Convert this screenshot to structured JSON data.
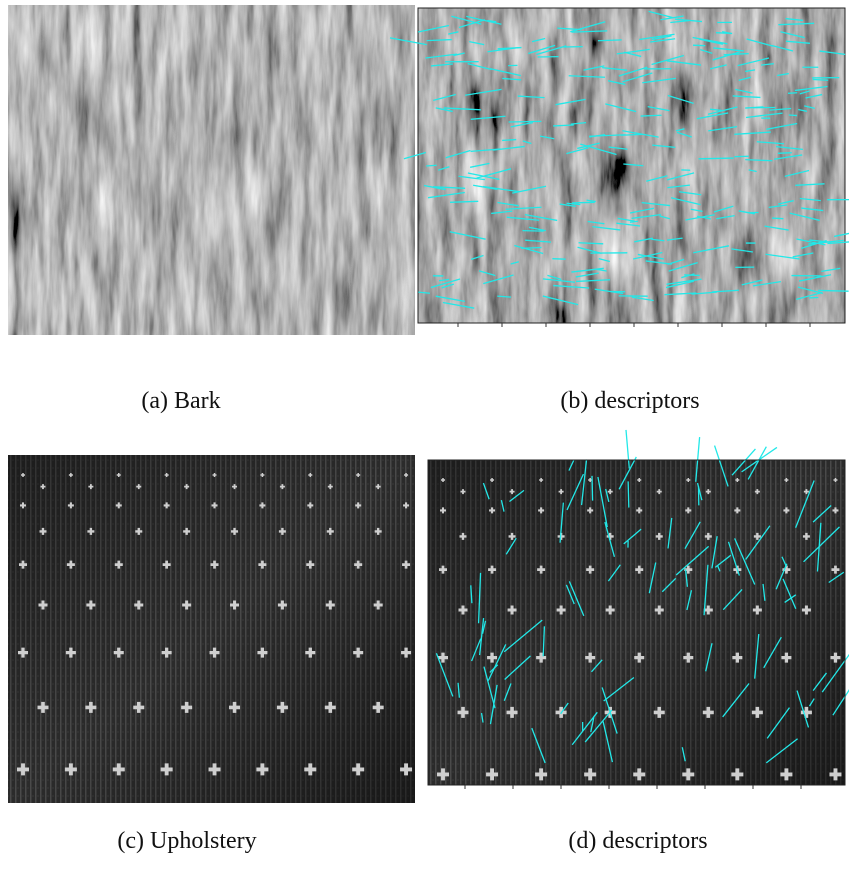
{
  "figure": {
    "panels": [
      {
        "caption": "(a) Bark"
      },
      {
        "caption": "(b) descriptors"
      },
      {
        "caption": "(c) Upholstery"
      },
      {
        "caption": "(d) descriptors"
      }
    ]
  }
}
